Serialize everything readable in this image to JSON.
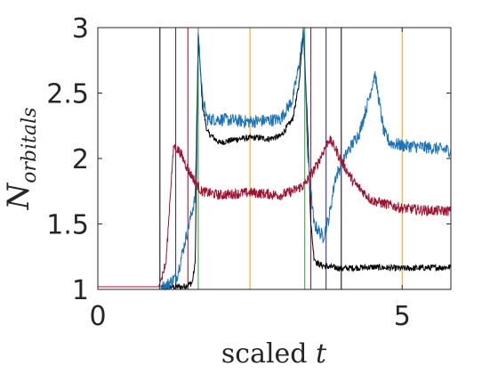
{
  "chart_data": {
    "type": "line",
    "title": "",
    "xlabel_prefix": "scaled ",
    "xlabel_var": "t",
    "ylabel_main": "N",
    "ylabel_sub": "orbitals",
    "xlim": [
      0,
      5.8
    ],
    "ylim": [
      1,
      3
    ],
    "x_ticks": [
      0,
      5
    ],
    "x_tick_labels": [
      "0",
      "5"
    ],
    "y_ticks": [
      1,
      1.5,
      2,
      2.5,
      3
    ],
    "y_tick_labels": [
      "1",
      "1.5",
      "2",
      "2.5",
      "3"
    ],
    "grid": false,
    "legend": "none",
    "vlines": [
      {
        "x": 1.02,
        "color": "#000000"
      },
      {
        "x": 1.28,
        "color": "#1f1fb4"
      },
      {
        "x": 1.48,
        "color": "#b4002d"
      },
      {
        "x": 1.65,
        "color": "#2ca02c"
      },
      {
        "x": 2.5,
        "color": "#f0a000"
      },
      {
        "x": 3.4,
        "color": "#2ca02c"
      },
      {
        "x": 3.5,
        "color": "#b4002d"
      },
      {
        "x": 3.75,
        "color": "#1f1fb4"
      },
      {
        "x": 4.0,
        "color": "#000000"
      },
      {
        "x": 5.0,
        "color": "#f0a000"
      }
    ],
    "series": [
      {
        "color": "#000000",
        "noise": 0.012,
        "x": [
          0,
          1.4,
          1.55,
          1.6,
          1.65,
          1.72,
          1.8,
          2.0,
          2.3,
          2.6,
          2.8,
          3.0,
          3.2,
          3.3,
          3.38,
          3.45,
          3.5,
          3.55,
          3.6,
          3.7,
          4.0,
          4.5,
          5.0,
          5.8
        ],
        "values": [
          1.02,
          1.02,
          1.05,
          1.2,
          2.95,
          2.4,
          2.2,
          2.12,
          2.15,
          2.16,
          2.15,
          2.17,
          2.3,
          2.55,
          2.98,
          2.2,
          1.5,
          1.25,
          1.2,
          1.18,
          1.16,
          1.17,
          1.16,
          1.17
        ]
      },
      {
        "color": "#1a73b8",
        "noise": 0.025,
        "x": [
          0,
          1.1,
          1.3,
          1.4,
          1.5,
          1.6,
          1.65,
          1.72,
          1.8,
          2.0,
          2.5,
          3.0,
          3.2,
          3.3,
          3.38,
          3.45,
          3.55,
          3.7,
          3.8,
          3.9,
          4.0,
          4.1,
          4.3,
          4.45,
          4.55,
          4.6,
          4.7,
          4.8,
          5.0,
          5.5,
          5.8
        ],
        "values": [
          1.02,
          1.02,
          1.1,
          1.3,
          1.5,
          1.7,
          2.95,
          2.45,
          2.3,
          2.3,
          2.28,
          2.3,
          2.45,
          2.7,
          2.98,
          2.0,
          1.5,
          1.4,
          1.55,
          1.85,
          1.95,
          2.05,
          2.2,
          2.45,
          2.65,
          2.5,
          2.2,
          2.12,
          2.1,
          2.08,
          2.06
        ]
      },
      {
        "color": "#a0112f",
        "noise": 0.02,
        "x": [
          0,
          1.0,
          1.12,
          1.2,
          1.25,
          1.35,
          1.5,
          1.7,
          2.0,
          2.5,
          3.0,
          3.2,
          3.4,
          3.6,
          3.8,
          3.9,
          4.0,
          4.2,
          4.5,
          5.0,
          5.5,
          5.8
        ],
        "values": [
          1.02,
          1.02,
          1.2,
          1.8,
          2.1,
          2.05,
          1.9,
          1.75,
          1.72,
          1.74,
          1.72,
          1.75,
          1.8,
          1.95,
          2.15,
          2.08,
          1.98,
          1.82,
          1.68,
          1.62,
          1.6,
          1.6
        ]
      }
    ]
  }
}
